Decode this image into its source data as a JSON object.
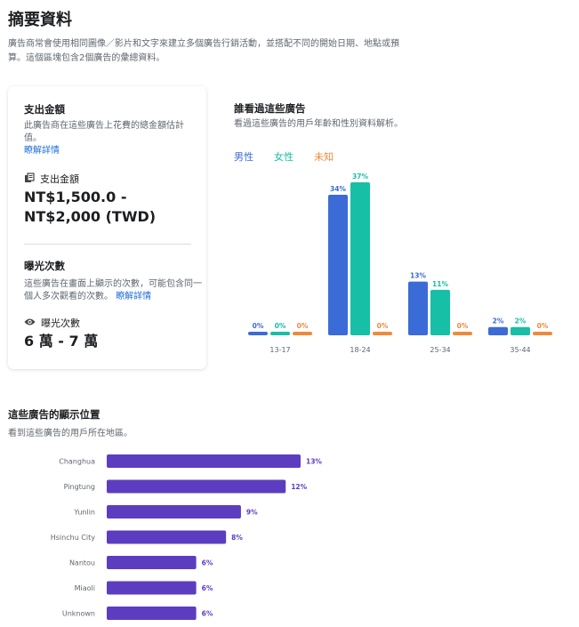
{
  "page": {
    "title": "摘要資料",
    "intro": "廣告商常會使用相同圖像／影片和文字來建立多個廣告行銷活動，並搭配不同的開始日期、地點或預算。這個區塊包含2個廣告的彙總資料。"
  },
  "spend": {
    "title": "支出金額",
    "description": "此廣告商在這些廣告上花費的總金額估計值。",
    "learn_more": "瞭解詳情",
    "metric_label": "支出金額",
    "value_line1": "NT$1,500.0 -",
    "value_line2": "NT$2,000 (TWD)"
  },
  "impressions": {
    "title": "曝光次數",
    "description": "這些廣告在畫面上顯示的次數，可能包含同一個人多次觀看的次數。",
    "learn_more": "瞭解詳情",
    "metric_label": "曝光次數",
    "value": "6 萬 - 7 萬"
  },
  "audience": {
    "title": "誰看過這些廣告",
    "description": "看過這些廣告的用戶年齡和性別資料解析。",
    "legend": [
      {
        "label": "男性",
        "color": "#3b6bd6"
      },
      {
        "label": "女性",
        "color": "#16bfa6"
      },
      {
        "label": "未知",
        "color": "#f0893a"
      }
    ]
  },
  "geo": {
    "title": "這些廣告的顯示位置",
    "description": "看到這些廣告的用戶所在地區。",
    "bar_color": "#5c3dc0"
  },
  "chart_data": [
    {
      "type": "bar",
      "categories": [
        "13-17",
        "18-24",
        "25-34",
        "35-44"
      ],
      "series": [
        {
          "name": "男性",
          "values": [
            0,
            34,
            13,
            2
          ],
          "labels": [
            "0%",
            "34%",
            "13%",
            "2%"
          ]
        },
        {
          "name": "女性",
          "values": [
            0,
            37,
            11,
            2
          ],
          "labels": [
            "0%",
            "37%",
            "11%",
            "2%"
          ]
        },
        {
          "name": "未知",
          "values": [
            0,
            0,
            0,
            0
          ],
          "labels": [
            "0%",
            "0%",
            "0%",
            "0%"
          ]
        }
      ],
      "ylim": [
        0,
        37
      ],
      "grid": false,
      "legend": "top-left"
    },
    {
      "type": "bar",
      "orientation": "horizontal",
      "categories": [
        "Changhua",
        "Pingtung",
        "Yunlin",
        "Hsinchu City",
        "Nantou",
        "Miaoli",
        "Unknown"
      ],
      "values": [
        13,
        12,
        9,
        8,
        6,
        6,
        6
      ],
      "labels": [
        "13%",
        "12%",
        "9%",
        "8%",
        "6%",
        "6%",
        "6%"
      ],
      "xlim": [
        0,
        13
      ],
      "grid": false
    }
  ]
}
